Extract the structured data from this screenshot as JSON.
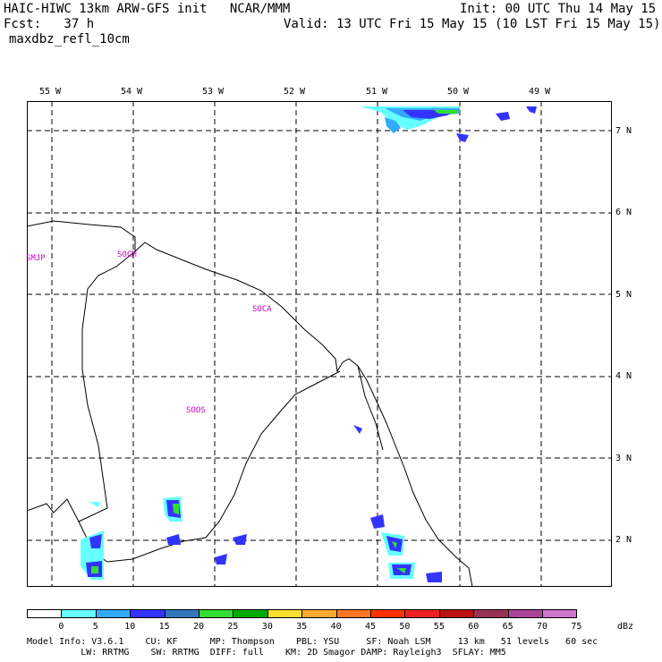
{
  "header": {
    "title_left": "HAIC-HIWC 13km ARW-GFS init   NCAR/MMM",
    "init": "Init: 00 UTC Thu 14 May 15",
    "fcst_label": "Fcst:   37 h",
    "valid": "Valid: 13 UTC Fri 15 May 15 (10 LST Fri 15 May 15)",
    "field": "maxdbz_refl_10cm"
  },
  "map": {
    "lon_labels": [
      "55 W",
      "54 W",
      "53 W",
      "52 W",
      "51 W",
      "50 W",
      "49 W"
    ],
    "lat_labels": [
      "7 N",
      "6 N",
      "5 N",
      "4 N",
      "3 N",
      "2 N"
    ],
    "stations": [
      "SMJP",
      "SOCM",
      "SOCA",
      "SOOS"
    ]
  },
  "colorbar": {
    "unit": "dBz",
    "ticks": [
      "0",
      "5",
      "10",
      "15",
      "20",
      "25",
      "30",
      "35",
      "40",
      "45",
      "50",
      "55",
      "60",
      "65",
      "70",
      "75"
    ],
    "colors": [
      "#ffffff",
      "#66ffff",
      "#33aaff",
      "#3333ff",
      "#3377bb",
      "#33dd33",
      "#00aa00",
      "#ffdd33",
      "#ffaa33",
      "#ff7722",
      "#ff3300",
      "#ee2222",
      "#bb1111",
      "#993355",
      "#aa4499",
      "#cc77cc"
    ]
  },
  "model_info": {
    "line1": "Model Info: V3.6.1    CU: KF      MP: Thompson    PBL: YSU     SF: Noah LSM     13 km   51 levels   60 sec",
    "line2": "          LW: RRTMG    SW: RRTMG  DIFF: full    KM: 2D Smagor DAMP: Rayleigh3  SFLAY: MM5"
  }
}
